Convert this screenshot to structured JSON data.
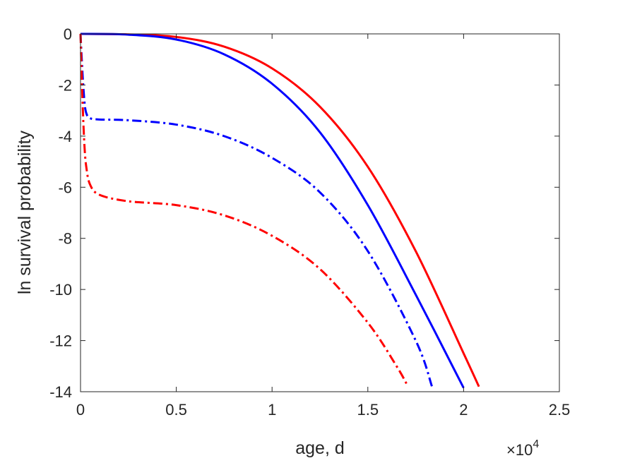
{
  "chart_data": {
    "type": "line",
    "xlabel": "age, d",
    "ylabel": "ln survival probability",
    "x_exponent_base": "×10",
    "x_exponent_power": "4",
    "xlim": [
      0,
      25000
    ],
    "ylim": [
      -14,
      0
    ],
    "x_ticks": [
      0,
      5000,
      10000,
      15000,
      20000,
      25000
    ],
    "x_tick_labels": [
      "0",
      "0.5",
      "1",
      "1.5",
      "2",
      "2.5"
    ],
    "y_ticks": [
      0,
      -2,
      -4,
      -6,
      -8,
      -10,
      -12,
      -14
    ],
    "y_tick_labels": [
      "0",
      "-2",
      "-4",
      "-6",
      "-8",
      "-10",
      "-12",
      "-14"
    ],
    "grid": false,
    "series": [
      {
        "color": "#ff0000",
        "style": "solid",
        "x": [
          0,
          2500,
          5000,
          7500,
          10000,
          12500,
          15000,
          17500,
          20000,
          20800
        ],
        "y": [
          0,
          -0.02,
          -0.12,
          -0.5,
          -1.35,
          -2.85,
          -5.2,
          -8.5,
          -12.5,
          -13.8
        ]
      },
      {
        "color": "#0000ff",
        "style": "solid",
        "x": [
          0,
          2500,
          5000,
          7500,
          10000,
          12500,
          15000,
          17500,
          20000
        ],
        "y": [
          0,
          -0.03,
          -0.22,
          -0.8,
          -1.95,
          -3.85,
          -6.7,
          -10.2,
          -13.85
        ]
      },
      {
        "color": "#0000ff",
        "style": "dashdot",
        "x": [
          0,
          100,
          200,
          300,
          500,
          1000,
          2500,
          5000,
          7500,
          10000,
          12500,
          15000,
          17500,
          18350
        ],
        "y": [
          0,
          -1.5,
          -2.6,
          -3.1,
          -3.3,
          -3.35,
          -3.38,
          -3.55,
          -4.0,
          -4.85,
          -6.2,
          -8.5,
          -12.0,
          -13.8
        ]
      },
      {
        "color": "#ff0000",
        "style": "dashdot",
        "x": [
          0,
          100,
          200,
          300,
          500,
          1000,
          2500,
          5000,
          7500,
          10000,
          12500,
          15000,
          16500,
          17100
        ],
        "y": [
          0,
          -2.5,
          -4.3,
          -5.2,
          -5.9,
          -6.3,
          -6.55,
          -6.7,
          -7.1,
          -7.9,
          -9.2,
          -11.3,
          -13.0,
          -13.8
        ]
      }
    ]
  }
}
